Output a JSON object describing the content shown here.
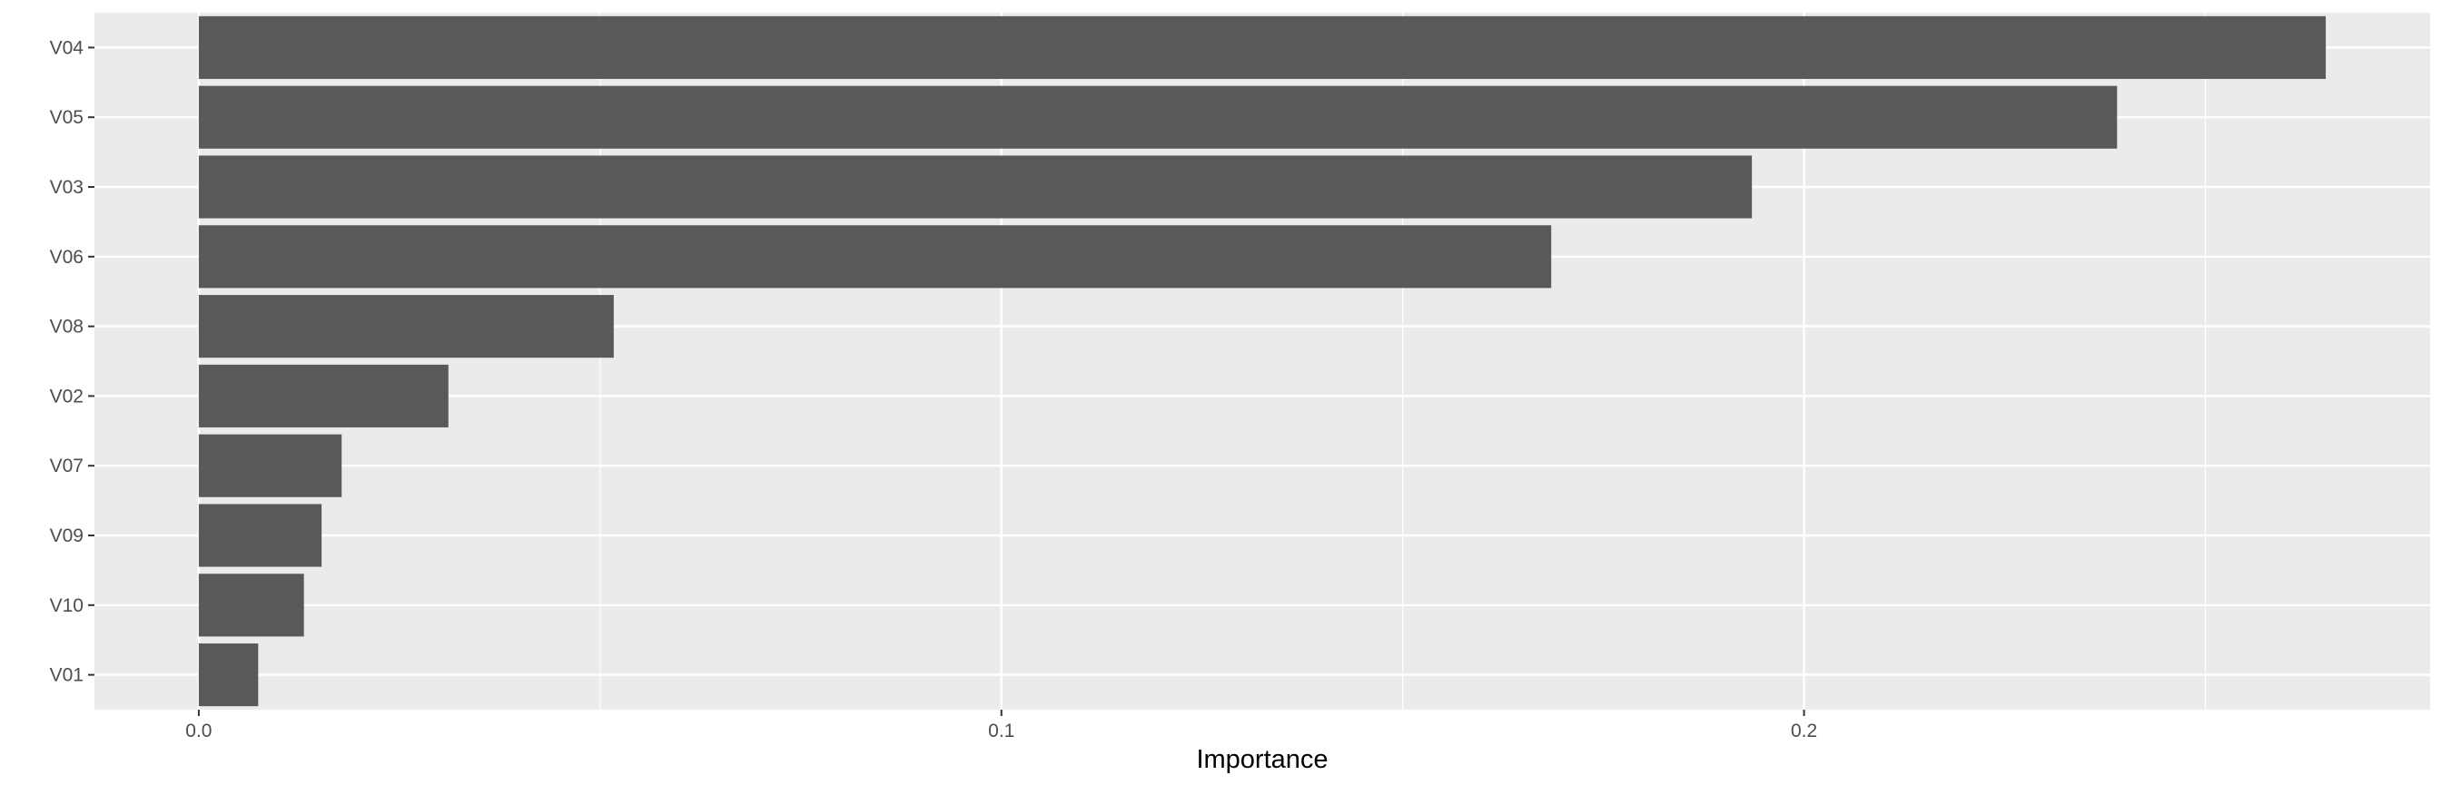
{
  "chart_data": {
    "type": "bar",
    "orientation": "horizontal",
    "title": "",
    "xlabel": "Importance",
    "ylabel": "",
    "categories": [
      "V04",
      "V05",
      "V03",
      "V06",
      "V08",
      "V02",
      "V07",
      "V09",
      "V10",
      "V01"
    ],
    "values": [
      0.265,
      0.239,
      0.1935,
      0.1685,
      0.0517,
      0.0311,
      0.0178,
      0.0153,
      0.0131,
      0.0074
    ],
    "xlim": [
      -0.013,
      0.278
    ],
    "x_ticks": [
      0.0,
      0.1,
      0.2
    ],
    "x_tick_labels": [
      "0.0",
      "0.1",
      "0.2"
    ],
    "grid": true,
    "colors": {
      "panel_background": "#ebebeb",
      "grid_major": "#ffffff",
      "bar_fill": "#595959",
      "tick_text": "#4d4d4d",
      "axis_title": "#000000"
    }
  }
}
